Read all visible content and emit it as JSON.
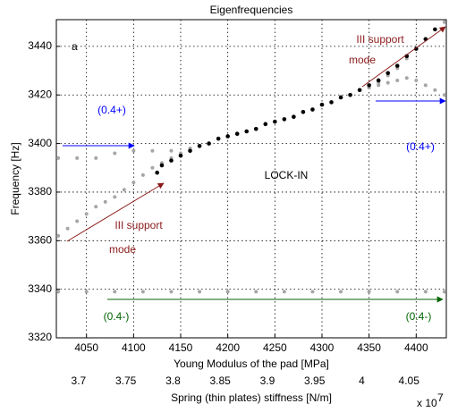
{
  "chart_data": {
    "type": "scatter",
    "title": "Eigenfrequencies",
    "xlabel": "Young Modulus of the pad [MPa]",
    "ylabel": "Frequency [Hz]",
    "x2label": "Spring (thin plates) stiffness [N/m]",
    "x2_exponent_base": "x 10",
    "x2_exponent": "7",
    "xlim": [
      4018,
      4432
    ],
    "ylim": [
      3320,
      3451
    ],
    "x2lim": [
      3.6764,
      4.0896
    ],
    "xticks": [
      4050,
      4100,
      4150,
      4200,
      4250,
      4300,
      4350,
      4400
    ],
    "yticks": [
      3320,
      3340,
      3360,
      3380,
      3400,
      3420,
      3440
    ],
    "x2ticks": [
      3.7,
      3.75,
      3.8,
      3.85,
      3.9,
      3.95,
      4,
      4.05
    ],
    "grid": true,
    "series": [
      {
        "color": "#a6a6a6",
        "x": [
          4020,
          4030,
          4040,
          4050,
          4060,
          4070,
          4080,
          4090,
          4100,
          4110,
          4120,
          4130,
          4140,
          4150,
          4160,
          4170,
          4180,
          4190,
          4200,
          4210,
          4220,
          4230,
          4240,
          4250,
          4260,
          4270,
          4280,
          4290,
          4300,
          4310,
          4320,
          4330,
          4340,
          4350,
          4360,
          4370,
          4380,
          4390,
          4400,
          4410,
          4420,
          4430
        ],
        "values": [
          3362,
          3365,
          3368,
          3371,
          3374,
          3376,
          3378,
          3381,
          3384,
          3387,
          3390,
          3392,
          3394,
          3396,
          3398,
          3399,
          3400,
          3402,
          3403,
          3404,
          3405,
          3406,
          3408,
          3409,
          3410,
          3411,
          3413,
          3414,
          3416,
          3417,
          3419,
          3420,
          3422,
          3423,
          3424,
          3425,
          3426,
          3427,
          3426,
          3424,
          3422,
          3420
        ]
      },
      {
        "color": "#a6a6a6",
        "x": [
          4020,
          4040,
          4060,
          4080,
          4100,
          4120,
          4140,
          4160
        ],
        "values": [
          3394,
          3394,
          3394,
          3396,
          3397,
          3397,
          3397,
          3398
        ]
      },
      {
        "color": "#a6a6a6",
        "x": [
          4350,
          4360,
          4370,
          4380,
          4390,
          4400,
          4410,
          4420,
          4430
        ],
        "values": [
          3423,
          3425,
          3428,
          3431,
          3435,
          3439,
          3443,
          3447,
          3450
        ]
      },
      {
        "color": "#a6a6a6",
        "x": [
          4020,
          4050,
          4080,
          4110,
          4140,
          4170,
          4200,
          4230,
          4260,
          4290,
          4320,
          4350,
          4380,
          4410,
          4430
        ],
        "values": [
          3339,
          3339,
          3339,
          3339,
          3339,
          3339,
          3339,
          3339,
          3339,
          3339,
          3339,
          3339,
          3339,
          3339,
          3339
        ]
      },
      {
        "color": "#000000",
        "x": [
          4125,
          4130,
          4140,
          4150,
          4160,
          4170,
          4180,
          4190,
          4200,
          4210,
          4220,
          4230,
          4240,
          4250,
          4260,
          4270,
          4280,
          4290,
          4300,
          4310,
          4320,
          4330,
          4340,
          4350,
          4360,
          4370,
          4380,
          4390,
          4400,
          4410,
          4420
        ],
        "values": [
          3388,
          3391,
          3393,
          3395,
          3397,
          3399,
          3400,
          3402,
          3403,
          3404,
          3405,
          3406,
          3408,
          3409,
          3410,
          3411,
          3413,
          3414,
          3416,
          3417,
          3419,
          3420,
          3422,
          3424,
          3426,
          3429,
          3432,
          3436,
          3439,
          3443,
          3447
        ]
      }
    ],
    "annotations": [
      {
        "text": "a",
        "color": "#000000"
      },
      {
        "text": "III support",
        "color": "#8b1a1a"
      },
      {
        "text": "mode",
        "color": "#8b1a1a"
      },
      {
        "text": "(0.4+)",
        "color": "#0000ff"
      },
      {
        "text": "(0.4+)",
        "color": "#0000ff"
      },
      {
        "text": "LOCK-IN",
        "color": "#000000"
      },
      {
        "text": "III support",
        "color": "#8b1a1a"
      },
      {
        "text": "mode",
        "color": "#8b1a1a"
      },
      {
        "text": "(0.4-)",
        "color": "#006400"
      },
      {
        "text": "(0.4-)",
        "color": "#006400"
      }
    ]
  }
}
